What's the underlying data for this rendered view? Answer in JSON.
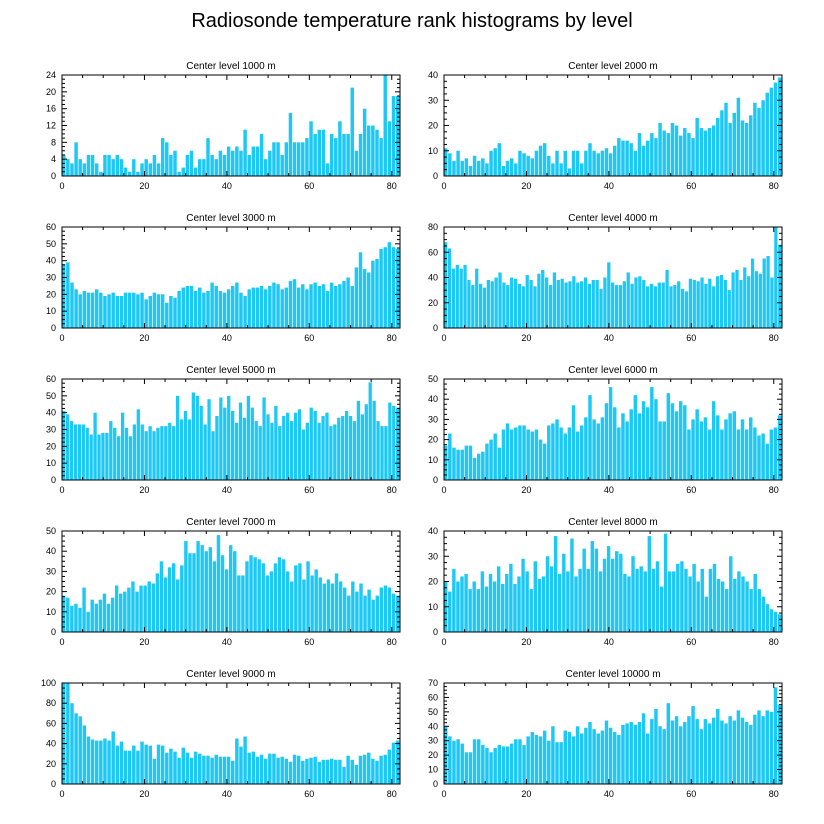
{
  "title": "Radiosonde temperature rank histograms by level",
  "colors": {
    "bar": "#1ec8f5",
    "bar_stroke": "#0aa6d6",
    "axis": "#000000",
    "background": "#ffffff"
  },
  "chart_data": [
    {
      "type": "bar",
      "title": "Center level 1000 m",
      "xlim": [
        0,
        82
      ],
      "ylim": [
        0,
        24
      ],
      "xticks": [
        0,
        20,
        40,
        60,
        80
      ],
      "yticks": [
        0,
        4,
        8,
        12,
        16,
        20,
        24
      ],
      "values": [
        5,
        4,
        3,
        8,
        4,
        3,
        5,
        5,
        3,
        1,
        5,
        5,
        4,
        5,
        4,
        2,
        1,
        4,
        1,
        3,
        4,
        3,
        5,
        3,
        9,
        8,
        5,
        6,
        1,
        2,
        5,
        6,
        2,
        4,
        4,
        9,
        5,
        4,
        6,
        5,
        7,
        6,
        7,
        6,
        11,
        5,
        7,
        7,
        10,
        4,
        6,
        8,
        8,
        5,
        8,
        15,
        8,
        8,
        8,
        9,
        13,
        10,
        11,
        11,
        3,
        10,
        9,
        13,
        10,
        10,
        21,
        6,
        10,
        16,
        12,
        12,
        11,
        9,
        24,
        13,
        19,
        19
      ]
    },
    {
      "type": "bar",
      "title": "Center level 2000 m",
      "xlim": [
        0,
        82
      ],
      "ylim": [
        0,
        40
      ],
      "xticks": [
        0,
        20,
        40,
        60,
        80
      ],
      "yticks": [
        0,
        10,
        20,
        30,
        40
      ],
      "values": [
        11,
        9,
        6,
        10,
        6,
        7,
        4,
        8,
        6,
        7,
        5,
        10,
        11,
        13,
        4,
        6,
        7,
        5,
        10,
        9,
        8,
        7,
        10,
        12,
        13,
        8,
        5,
        10,
        5,
        10,
        3,
        10,
        10,
        5,
        10,
        13,
        10,
        9,
        10,
        11,
        9,
        12,
        15,
        14,
        14,
        13,
        10,
        17,
        12,
        14,
        17,
        15,
        21,
        18,
        17,
        21,
        20,
        16,
        19,
        17,
        15,
        23,
        19,
        18,
        19,
        20,
        23,
        26,
        29,
        21,
        25,
        31,
        22,
        21,
        24,
        29,
        27,
        30,
        33,
        35,
        37,
        39
      ]
    },
    {
      "type": "bar",
      "title": "Center level 3000 m",
      "xlim": [
        0,
        82
      ],
      "ylim": [
        0,
        60
      ],
      "xticks": [
        0,
        20,
        40,
        60,
        80
      ],
      "yticks": [
        0,
        10,
        20,
        30,
        40,
        50,
        60
      ],
      "values": [
        38,
        39,
        27,
        23,
        20,
        22,
        21,
        21,
        23,
        21,
        19,
        20,
        21,
        19,
        19,
        21,
        21,
        21,
        20,
        21,
        17,
        19,
        21,
        20,
        20,
        15,
        19,
        18,
        22,
        24,
        25,
        25,
        22,
        24,
        21,
        22,
        27,
        25,
        22,
        21,
        23,
        25,
        27,
        21,
        19,
        23,
        24,
        24,
        25,
        23,
        25,
        27,
        26,
        23,
        24,
        28,
        29,
        24,
        26,
        23,
        26,
        27,
        25,
        26,
        22,
        27,
        25,
        26,
        28,
        30,
        25,
        36,
        45,
        35,
        33,
        40,
        41,
        47,
        48,
        51,
        48,
        47
      ]
    },
    {
      "type": "bar",
      "title": "Center level 4000 m",
      "xlim": [
        0,
        82
      ],
      "ylim": [
        0,
        80
      ],
      "xticks": [
        0,
        20,
        40,
        60,
        80
      ],
      "yticks": [
        0,
        20,
        40,
        60,
        80
      ],
      "values": [
        68,
        63,
        47,
        50,
        47,
        50,
        38,
        34,
        47,
        35,
        32,
        38,
        37,
        40,
        44,
        36,
        34,
        40,
        39,
        35,
        33,
        42,
        38,
        33,
        43,
        46,
        40,
        34,
        44,
        38,
        39,
        36,
        37,
        41,
        36,
        37,
        40,
        35,
        38,
        38,
        31,
        40,
        52,
        36,
        34,
        34,
        37,
        44,
        35,
        40,
        41,
        38,
        33,
        35,
        33,
        36,
        36,
        46,
        33,
        34,
        37,
        31,
        29,
        39,
        38,
        37,
        40,
        35,
        39,
        33,
        41,
        42,
        38,
        30,
        44,
        46,
        38,
        48,
        41,
        55,
        45,
        43,
        55,
        57,
        40,
        80,
        66
      ]
    },
    {
      "type": "bar",
      "title": "Center level 5000 m",
      "xlim": [
        0,
        82
      ],
      "ylim": [
        0,
        60
      ],
      "xticks": [
        0,
        20,
        40,
        60,
        80
      ],
      "yticks": [
        0,
        10,
        20,
        30,
        40,
        50,
        60
      ],
      "values": [
        41,
        39,
        35,
        33,
        33,
        33,
        31,
        27,
        40,
        27,
        28,
        28,
        35,
        31,
        26,
        40,
        31,
        26,
        33,
        42,
        33,
        29,
        32,
        29,
        31,
        32,
        32,
        34,
        32,
        50,
        36,
        41,
        36,
        52,
        50,
        44,
        33,
        48,
        29,
        38,
        49,
        43,
        50,
        41,
        34,
        46,
        37,
        50,
        43,
        35,
        32,
        49,
        39,
        34,
        44,
        32,
        38,
        40,
        35,
        40,
        42,
        30,
        34,
        43,
        41,
        34,
        38,
        40,
        32,
        33,
        37,
        38,
        41,
        38,
        35,
        47,
        39,
        45,
        58,
        47,
        35,
        32,
        32,
        46,
        44,
        43
      ]
    },
    {
      "type": "bar",
      "title": "Center level 6000 m",
      "xlim": [
        0,
        82
      ],
      "ylim": [
        0,
        50
      ],
      "xticks": [
        0,
        20,
        40,
        60,
        80
      ],
      "yticks": [
        0,
        10,
        20,
        30,
        40,
        50
      ],
      "values": [
        17,
        23,
        16,
        15,
        15,
        17,
        17,
        11,
        13,
        14,
        18,
        20,
        23,
        16,
        25,
        28,
        25,
        26,
        27,
        27,
        25,
        24,
        25,
        20,
        18,
        27,
        28,
        30,
        26,
        23,
        26,
        37,
        24,
        27,
        31,
        42,
        30,
        28,
        31,
        38,
        46,
        36,
        26,
        33,
        29,
        35,
        42,
        33,
        39,
        36,
        46,
        40,
        29,
        29,
        43,
        38,
        34,
        39,
        37,
        25,
        30,
        35,
        29,
        31,
        25,
        39,
        32,
        25,
        30,
        33,
        34,
        25,
        30,
        25,
        31,
        26,
        22,
        23,
        18,
        25,
        26,
        32
      ]
    },
    {
      "type": "bar",
      "title": "Center level 7000 m",
      "xlim": [
        0,
        82
      ],
      "ylim": [
        0,
        50
      ],
      "xticks": [
        0,
        20,
        40,
        60,
        80
      ],
      "yticks": [
        0,
        10,
        20,
        30,
        40,
        50
      ],
      "values": [
        18,
        17,
        13,
        14,
        12,
        22,
        10,
        16,
        14,
        16,
        19,
        14,
        17,
        23,
        19,
        20,
        22,
        25,
        20,
        23,
        23,
        25,
        24,
        29,
        35,
        27,
        32,
        34,
        26,
        33,
        45,
        39,
        39,
        45,
        43,
        40,
        42,
        35,
        48,
        38,
        31,
        43,
        40,
        28,
        28,
        35,
        38,
        37,
        36,
        34,
        28,
        30,
        34,
        37,
        36,
        30,
        25,
        33,
        34,
        26,
        35,
        28,
        31,
        27,
        24,
        26,
        24,
        29,
        25,
        22,
        18,
        25,
        20,
        24,
        18,
        21,
        16,
        18,
        22,
        23,
        22,
        19,
        18
      ]
    },
    {
      "type": "bar",
      "title": "Center level 8000 m",
      "xlim": [
        0,
        82
      ],
      "ylim": [
        0,
        40
      ],
      "xticks": [
        0,
        20,
        40,
        60,
        80
      ],
      "yticks": [
        0,
        10,
        20,
        30,
        40
      ],
      "values": [
        20,
        16,
        25,
        20,
        22,
        23,
        17,
        20,
        17,
        24,
        18,
        23,
        20,
        26,
        19,
        23,
        27,
        19,
        22,
        29,
        24,
        17,
        28,
        21,
        22,
        30,
        26,
        38,
        23,
        31,
        24,
        37,
        22,
        25,
        33,
        25,
        36,
        33,
        24,
        29,
        34,
        29,
        32,
        31,
        23,
        22,
        30,
        25,
        26,
        24,
        38,
        25,
        28,
        18,
        39,
        24,
        24,
        27,
        28,
        25,
        22,
        27,
        20,
        25,
        14,
        25,
        27,
        21,
        20,
        17,
        30,
        21,
        24,
        22,
        20,
        17,
        23,
        17,
        14,
        11,
        9,
        8,
        7
      ]
    },
    {
      "type": "bar",
      "title": "Center level 9000 m",
      "xlim": [
        0,
        82
      ],
      "ylim": [
        0,
        100
      ],
      "xticks": [
        0,
        20,
        40,
        60,
        80
      ],
      "yticks": [
        0,
        20,
        40,
        60,
        80,
        100
      ],
      "values": [
        100,
        100,
        80,
        70,
        67,
        58,
        47,
        44,
        43,
        43,
        45,
        43,
        52,
        38,
        42,
        33,
        33,
        38,
        33,
        42,
        39,
        38,
        25,
        39,
        38,
        31,
        35,
        32,
        26,
        36,
        31,
        26,
        32,
        30,
        28,
        28,
        26,
        29,
        27,
        27,
        27,
        23,
        45,
        37,
        47,
        31,
        32,
        27,
        29,
        25,
        30,
        30,
        26,
        27,
        25,
        22,
        29,
        28,
        23,
        25,
        26,
        27,
        22,
        24,
        24,
        25,
        24,
        24,
        17,
        28,
        24,
        19,
        28,
        29,
        31,
        25,
        23,
        28,
        29,
        34,
        41,
        43
      ]
    },
    {
      "type": "bar",
      "title": "Center level 10000 m",
      "xlim": [
        0,
        82
      ],
      "ylim": [
        0,
        70
      ],
      "xticks": [
        0,
        20,
        40,
        60,
        80
      ],
      "yticks": [
        0,
        10,
        20,
        30,
        40,
        50,
        60,
        70
      ],
      "values": [
        40,
        33,
        30,
        31,
        28,
        22,
        22,
        31,
        31,
        27,
        25,
        22,
        25,
        27,
        26,
        26,
        28,
        31,
        31,
        27,
        33,
        36,
        34,
        33,
        37,
        30,
        40,
        29,
        29,
        37,
        36,
        33,
        40,
        35,
        39,
        43,
        38,
        35,
        37,
        44,
        39,
        36,
        34,
        41,
        42,
        43,
        41,
        43,
        49,
        35,
        45,
        52,
        40,
        38,
        56,
        44,
        47,
        40,
        43,
        47,
        54,
        45,
        38,
        45,
        42,
        46,
        52,
        44,
        42,
        47,
        44,
        51,
        46,
        43,
        41,
        48,
        51,
        47,
        51,
        50,
        67,
        55
      ]
    }
  ]
}
